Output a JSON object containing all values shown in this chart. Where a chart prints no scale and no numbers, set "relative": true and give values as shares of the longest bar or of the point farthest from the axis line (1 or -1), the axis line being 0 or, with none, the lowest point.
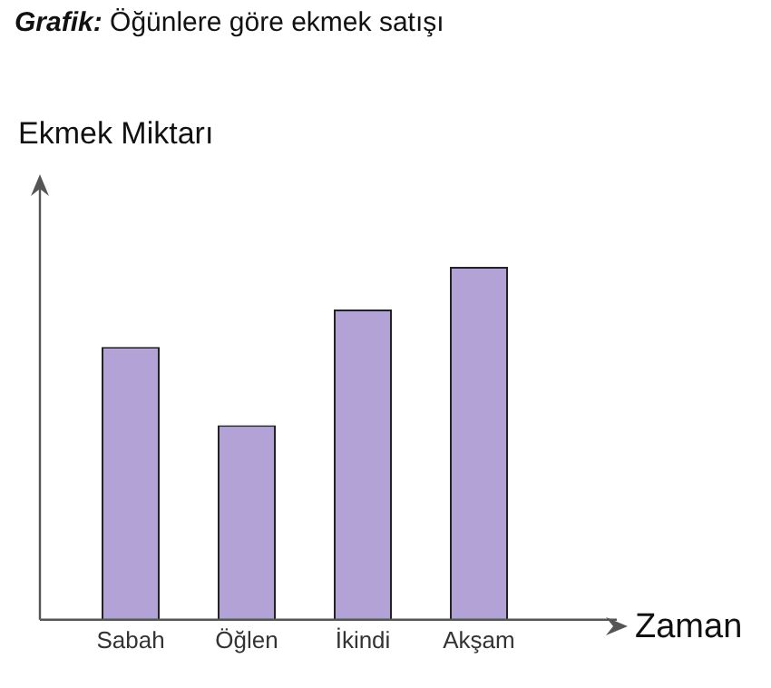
{
  "chart_data": {
    "type": "bar",
    "title": "Grafik: Öğünlere göre ekmek satışı",
    "xlabel": "Zaman",
    "ylabel": "Ekmek Miktarı",
    "categories": [
      "Sabah",
      "Öğlen",
      "İkindi",
      "Akşam"
    ],
    "values": [
      0.773,
      0.551,
      0.879,
      1
    ],
    "color": "#b3a2d6",
    "relative": true
  }
}
